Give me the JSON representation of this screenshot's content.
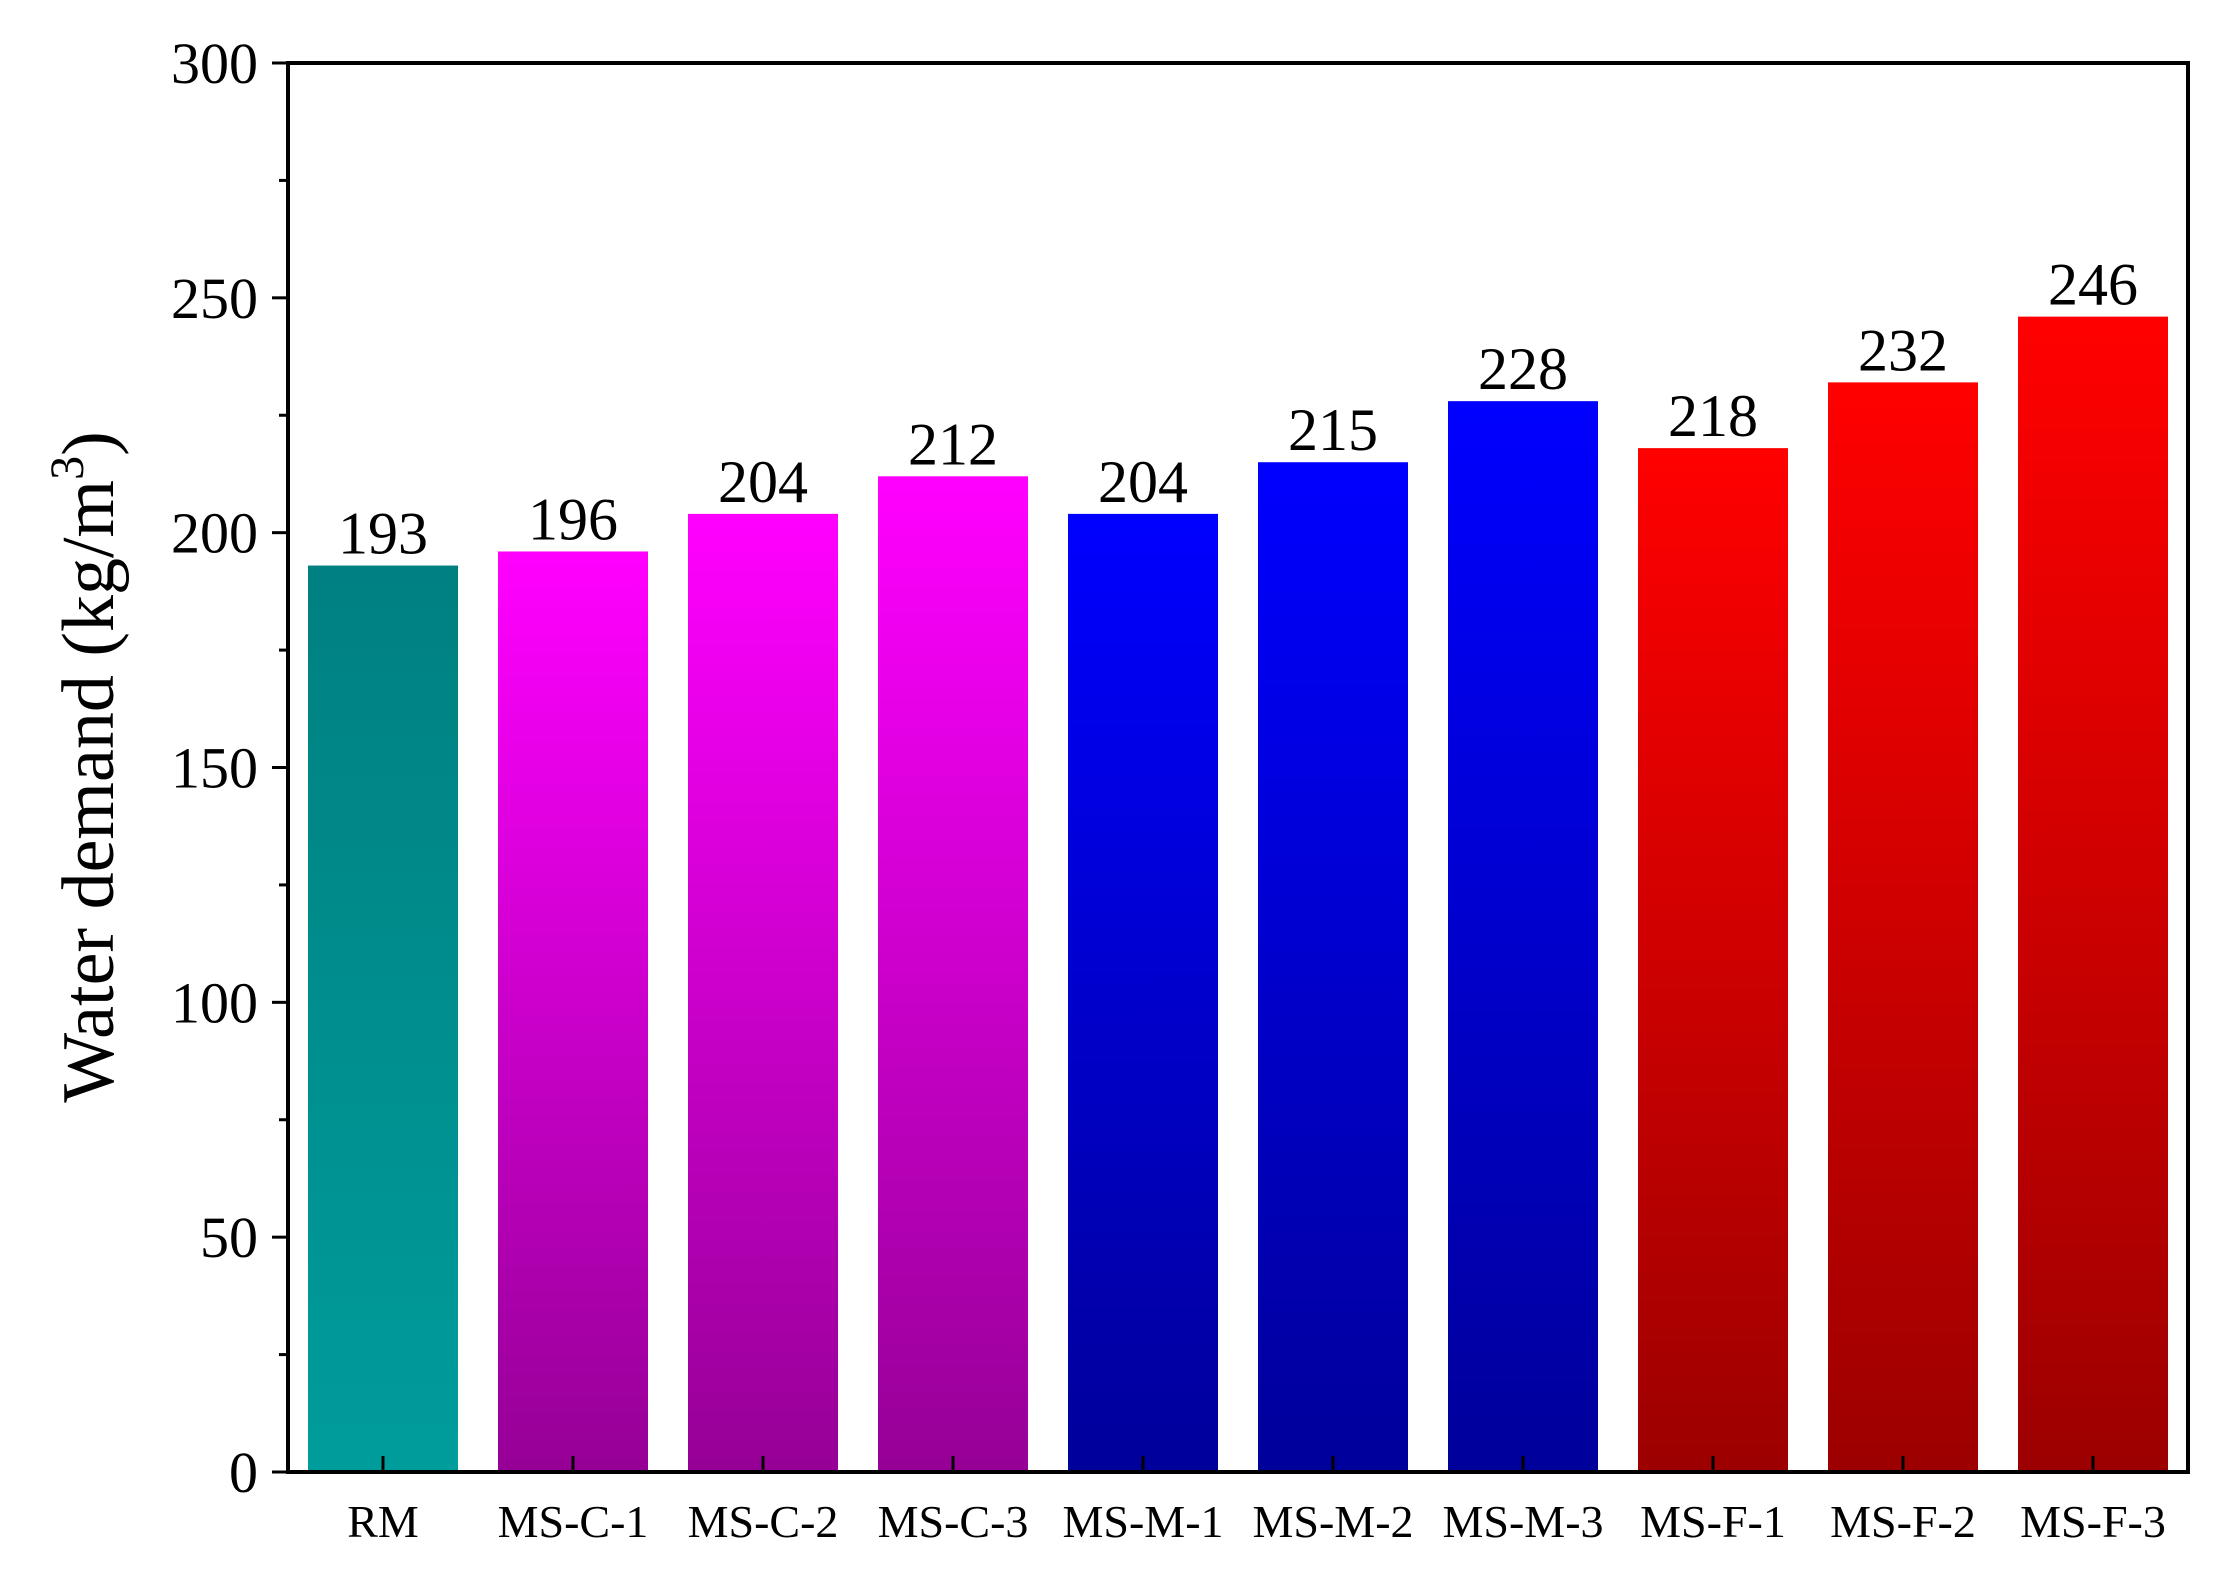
{
  "chart_data": {
    "type": "bar",
    "ylabel": "Water demand (kg/m",
    "ylabel_sup": "3",
    "ylabel_close": ")",
    "ylim": [
      0,
      300
    ],
    "yticks": [
      0,
      50,
      100,
      150,
      200,
      250,
      300
    ],
    "grid": false,
    "categories": [
      "RM",
      "MS-C-1",
      "MS-C-2",
      "MS-C-3",
      "MS-M-1",
      "MS-M-2",
      "MS-M-3",
      "MS-F-1",
      "MS-F-2",
      "MS-F-3"
    ],
    "values": [
      193,
      196,
      204,
      212,
      204,
      215,
      228,
      218,
      232,
      246
    ],
    "data_labels": [
      "193",
      "196",
      "204",
      "212",
      "204",
      "215",
      "228",
      "218",
      "232",
      "246"
    ],
    "bar_colors": [
      {
        "top": "#008080",
        "bottom": "#009c9c"
      },
      {
        "top": "#ff00ff",
        "bottom": "#960096"
      },
      {
        "top": "#ff00ff",
        "bottom": "#960096"
      },
      {
        "top": "#ff00ff",
        "bottom": "#960096"
      },
      {
        "top": "#0000ff",
        "bottom": "#00009a"
      },
      {
        "top": "#0000ff",
        "bottom": "#00009a"
      },
      {
        "top": "#0000ff",
        "bottom": "#00009a"
      },
      {
        "top": "#ff0000",
        "bottom": "#9c0000"
      },
      {
        "top": "#ff0000",
        "bottom": "#9c0000"
      },
      {
        "top": "#ff0000",
        "bottom": "#9c0000"
      }
    ]
  }
}
